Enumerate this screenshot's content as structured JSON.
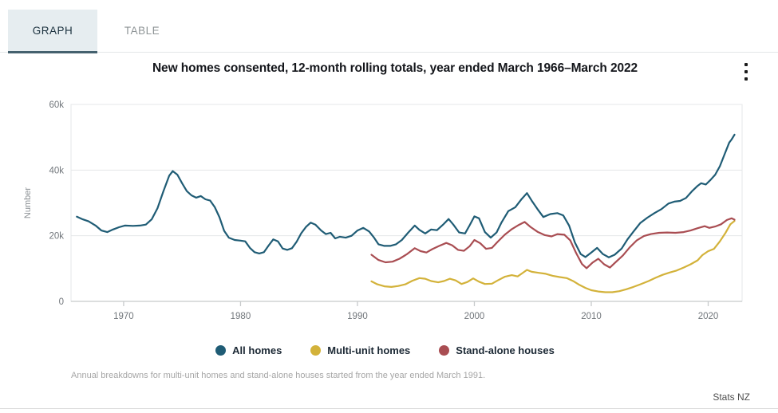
{
  "tabs": [
    {
      "label": "GRAPH",
      "active": true
    },
    {
      "label": "TABLE",
      "active": false
    }
  ],
  "header": {
    "title": "New homes consented, 12-month rolling totals, year ended March 1966–March 2022",
    "menu_icon": "kebab-menu"
  },
  "footnote": {
    "text": "Annual breakdowns for multi-unit homes and stand-alone houses started from the year ended March 1991."
  },
  "attribution": {
    "text": "Stats NZ"
  },
  "colors": {
    "accent_teal": "#1f5c75",
    "accent_yellow": "#d3b23a",
    "accent_red": "#a94d52",
    "tab_active_bg": "#e6edf0",
    "tab_underline": "#44616e",
    "grid": "#e5e7e8",
    "axis": "#c7cacb",
    "tick_text": "#71767b"
  },
  "chart_data": {
    "type": "line",
    "title": "New homes consented, 12-month rolling totals, year ended March 1966–March 2022",
    "xlabel": "",
    "ylabel": "Number",
    "grid": true,
    "legend_position": "bottom",
    "xlim": [
      1965.5,
      2022.9
    ],
    "ylim": [
      0,
      60000
    ],
    "x_ticks": [
      1970,
      1980,
      1990,
      2000,
      2010,
      2020
    ],
    "y_ticks": {
      "values": [
        0,
        20000,
        40000,
        60000
      ],
      "labels": [
        "0",
        "20k",
        "40k",
        "60k"
      ]
    },
    "series": [
      {
        "name": "All homes",
        "color": "#1f5c75",
        "points": [
          [
            1966,
            25800
          ],
          [
            1966.5,
            25000
          ],
          [
            1967,
            24400
          ],
          [
            1967.6,
            23100
          ],
          [
            1968.1,
            21600
          ],
          [
            1968.6,
            21100
          ],
          [
            1969.1,
            21900
          ],
          [
            1969.6,
            22600
          ],
          [
            1970.1,
            23100
          ],
          [
            1970.8,
            23000
          ],
          [
            1971.4,
            23100
          ],
          [
            1971.9,
            23400
          ],
          [
            1972.4,
            25000
          ],
          [
            1972.9,
            28400
          ],
          [
            1973.4,
            33500
          ],
          [
            1973.9,
            38300
          ],
          [
            1974.2,
            39700
          ],
          [
            1974.6,
            38600
          ],
          [
            1975,
            36000
          ],
          [
            1975.4,
            33600
          ],
          [
            1975.8,
            32300
          ],
          [
            1976.2,
            31600
          ],
          [
            1976.6,
            32100
          ],
          [
            1977,
            31100
          ],
          [
            1977.4,
            30700
          ],
          [
            1977.8,
            28700
          ],
          [
            1978.2,
            25600
          ],
          [
            1978.6,
            21500
          ],
          [
            1979,
            19400
          ],
          [
            1979.5,
            18700
          ],
          [
            1980,
            18500
          ],
          [
            1980.4,
            18300
          ],
          [
            1980.8,
            16300
          ],
          [
            1981.2,
            15000
          ],
          [
            1981.6,
            14600
          ],
          [
            1982,
            15000
          ],
          [
            1982.4,
            17000
          ],
          [
            1982.8,
            18900
          ],
          [
            1983.2,
            18300
          ],
          [
            1983.6,
            16100
          ],
          [
            1984,
            15700
          ],
          [
            1984.4,
            16200
          ],
          [
            1984.8,
            18200
          ],
          [
            1985.2,
            20800
          ],
          [
            1985.6,
            22700
          ],
          [
            1986,
            24000
          ],
          [
            1986.4,
            23400
          ],
          [
            1986.9,
            21600
          ],
          [
            1987.3,
            20500
          ],
          [
            1987.7,
            20900
          ],
          [
            1988.1,
            19200
          ],
          [
            1988.5,
            19700
          ],
          [
            1989,
            19400
          ],
          [
            1989.5,
            20000
          ],
          [
            1990,
            21600
          ],
          [
            1990.5,
            22400
          ],
          [
            1991,
            21300
          ],
          [
            1991.4,
            19500
          ],
          [
            1991.8,
            17400
          ],
          [
            1992.3,
            16900
          ],
          [
            1992.8,
            16900
          ],
          [
            1993.3,
            17400
          ],
          [
            1993.8,
            18700
          ],
          [
            1994.3,
            20800
          ],
          [
            1994.9,
            23100
          ],
          [
            1995.3,
            21800
          ],
          [
            1995.8,
            20700
          ],
          [
            1996.3,
            21900
          ],
          [
            1996.8,
            21700
          ],
          [
            1997.3,
            23300
          ],
          [
            1997.8,
            25100
          ],
          [
            1998.2,
            23400
          ],
          [
            1998.7,
            21000
          ],
          [
            1999.2,
            20700
          ],
          [
            1999.6,
            23200
          ],
          [
            2000,
            25900
          ],
          [
            2000.4,
            25300
          ],
          [
            2000.9,
            21100
          ],
          [
            2001.4,
            19400
          ],
          [
            2001.9,
            21000
          ],
          [
            2002.3,
            23900
          ],
          [
            2002.9,
            27500
          ],
          [
            2003.5,
            28700
          ],
          [
            2004,
            31000
          ],
          [
            2004.5,
            33000
          ],
          [
            2004.9,
            30700
          ],
          [
            2005.4,
            28100
          ],
          [
            2005.9,
            25700
          ],
          [
            2006.5,
            26600
          ],
          [
            2007.1,
            26900
          ],
          [
            2007.6,
            26200
          ],
          [
            2008.1,
            23100
          ],
          [
            2008.6,
            17900
          ],
          [
            2009.1,
            14400
          ],
          [
            2009.5,
            13500
          ],
          [
            2010,
            14900
          ],
          [
            2010.5,
            16300
          ],
          [
            2011,
            14400
          ],
          [
            2011.5,
            13400
          ],
          [
            2012,
            14200
          ],
          [
            2012.6,
            16100
          ],
          [
            2013.1,
            18900
          ],
          [
            2013.6,
            21200
          ],
          [
            2014.2,
            23900
          ],
          [
            2014.8,
            25500
          ],
          [
            2015.4,
            26900
          ],
          [
            2016,
            28100
          ],
          [
            2016.6,
            29800
          ],
          [
            2017.1,
            30400
          ],
          [
            2017.6,
            30600
          ],
          [
            2018.1,
            31500
          ],
          [
            2018.6,
            33500
          ],
          [
            2019.1,
            35200
          ],
          [
            2019.4,
            36000
          ],
          [
            2019.8,
            35600
          ],
          [
            2020.2,
            37000
          ],
          [
            2020.6,
            38600
          ],
          [
            2021,
            41200
          ],
          [
            2021.4,
            44800
          ],
          [
            2021.8,
            48400
          ],
          [
            2022,
            49300
          ],
          [
            2022.25,
            50800
          ]
        ]
      },
      {
        "name": "Multi-unit homes",
        "color": "#d3b23a",
        "points": [
          [
            1991.2,
            6100
          ],
          [
            1991.7,
            5200
          ],
          [
            1992.3,
            4600
          ],
          [
            1992.9,
            4400
          ],
          [
            1993.5,
            4700
          ],
          [
            1994.1,
            5200
          ],
          [
            1994.7,
            6300
          ],
          [
            1995.3,
            7100
          ],
          [
            1995.8,
            6900
          ],
          [
            1996.3,
            6200
          ],
          [
            1996.9,
            5800
          ],
          [
            1997.4,
            6200
          ],
          [
            1997.9,
            6900
          ],
          [
            1998.4,
            6400
          ],
          [
            1998.9,
            5300
          ],
          [
            1999.4,
            5900
          ],
          [
            1999.9,
            7000
          ],
          [
            2000.4,
            6000
          ],
          [
            2000.9,
            5300
          ],
          [
            2001.5,
            5400
          ],
          [
            2002,
            6400
          ],
          [
            2002.6,
            7500
          ],
          [
            2003.2,
            8000
          ],
          [
            2003.7,
            7600
          ],
          [
            2004.1,
            8600
          ],
          [
            2004.5,
            9600
          ],
          [
            2004.9,
            9000
          ],
          [
            2005.5,
            8700
          ],
          [
            2006.1,
            8400
          ],
          [
            2006.7,
            7800
          ],
          [
            2007.3,
            7400
          ],
          [
            2007.9,
            7100
          ],
          [
            2008.5,
            6100
          ],
          [
            2009,
            5000
          ],
          [
            2009.5,
            4100
          ],
          [
            2010,
            3400
          ],
          [
            2010.6,
            3000
          ],
          [
            2011.2,
            2800
          ],
          [
            2011.8,
            2800
          ],
          [
            2012.4,
            3100
          ],
          [
            2013,
            3700
          ],
          [
            2013.6,
            4400
          ],
          [
            2014.2,
            5200
          ],
          [
            2014.9,
            6200
          ],
          [
            2015.5,
            7200
          ],
          [
            2016.1,
            8100
          ],
          [
            2016.7,
            8800
          ],
          [
            2017.3,
            9400
          ],
          [
            2017.9,
            10300
          ],
          [
            2018.5,
            11300
          ],
          [
            2019.1,
            12500
          ],
          [
            2019.5,
            14100
          ],
          [
            2020,
            15300
          ],
          [
            2020.5,
            16000
          ],
          [
            2021,
            18300
          ],
          [
            2021.5,
            21000
          ],
          [
            2021.9,
            23500
          ],
          [
            2022.25,
            24500
          ]
        ]
      },
      {
        "name": "Stand-alone houses",
        "color": "#a94d52",
        "points": [
          [
            1991.2,
            14200
          ],
          [
            1991.8,
            12600
          ],
          [
            1992.4,
            11900
          ],
          [
            1993,
            12100
          ],
          [
            1993.6,
            13000
          ],
          [
            1994.2,
            14300
          ],
          [
            1994.9,
            16200
          ],
          [
            1995.4,
            15300
          ],
          [
            1995.9,
            14900
          ],
          [
            1996.4,
            15900
          ],
          [
            1997,
            16900
          ],
          [
            1997.6,
            17800
          ],
          [
            1998.1,
            17100
          ],
          [
            1998.6,
            15700
          ],
          [
            1999.1,
            15400
          ],
          [
            1999.6,
            16800
          ],
          [
            2000,
            18700
          ],
          [
            2000.5,
            17700
          ],
          [
            2001,
            16000
          ],
          [
            2001.5,
            16300
          ],
          [
            2002,
            18200
          ],
          [
            2002.6,
            20300
          ],
          [
            2003.2,
            22000
          ],
          [
            2003.8,
            23300
          ],
          [
            2004.3,
            24200
          ],
          [
            2004.8,
            22700
          ],
          [
            2005.4,
            21200
          ],
          [
            2006,
            20200
          ],
          [
            2006.6,
            19800
          ],
          [
            2007.1,
            20500
          ],
          [
            2007.7,
            20300
          ],
          [
            2008.2,
            18600
          ],
          [
            2008.7,
            14800
          ],
          [
            2009.2,
            11400
          ],
          [
            2009.6,
            10100
          ],
          [
            2010.1,
            11800
          ],
          [
            2010.6,
            13000
          ],
          [
            2011.1,
            11300
          ],
          [
            2011.6,
            10300
          ],
          [
            2012.1,
            12000
          ],
          [
            2012.7,
            14000
          ],
          [
            2013.3,
            16500
          ],
          [
            2013.9,
            18600
          ],
          [
            2014.5,
            19900
          ],
          [
            2015.1,
            20500
          ],
          [
            2015.8,
            20900
          ],
          [
            2016.5,
            21000
          ],
          [
            2017.2,
            20900
          ],
          [
            2017.9,
            21100
          ],
          [
            2018.5,
            21600
          ],
          [
            2019.1,
            22300
          ],
          [
            2019.7,
            22900
          ],
          [
            2020.1,
            22400
          ],
          [
            2020.6,
            22800
          ],
          [
            2021.1,
            23500
          ],
          [
            2021.6,
            24800
          ],
          [
            2022,
            25300
          ],
          [
            2022.25,
            24900
          ]
        ]
      }
    ]
  }
}
